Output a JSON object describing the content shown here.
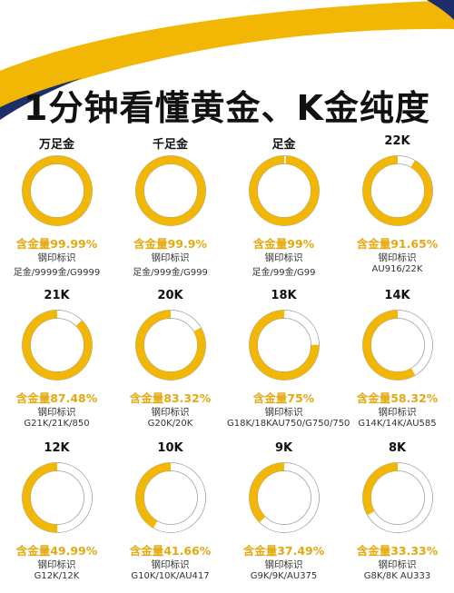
{
  "title": "1分钟看懂黄金、K金纯度",
  "colors": {
    "gold": "#f2b705",
    "ring_empty": "#ffffff",
    "ring_border": "#9a9a9a",
    "purity_text": "#e2a910",
    "navy": "#1d2f6b"
  },
  "items": [
    {
      "name": "万足金",
      "percent": 99.99,
      "purity": "含金量99.99%",
      "stamp_label": "钢印标识",
      "stamp": "足金/9999金/G9999"
    },
    {
      "name": "千足金",
      "percent": 99.9,
      "purity": "含金量99.9%",
      "stamp_label": "钢印标识",
      "stamp": "足金/999金/G999"
    },
    {
      "name": "足金",
      "percent": 99,
      "purity": "含金量99%",
      "stamp_label": "钢印标识",
      "stamp": "足金/99金/G99"
    },
    {
      "name": "22K",
      "percent": 91.65,
      "purity": "含金量91.65%",
      "stamp_label": "钢印标识",
      "stamp": "AU916/22K"
    },
    {
      "name": "21K",
      "percent": 87.48,
      "purity": "含金量87.48%",
      "stamp_label": "钢印标识",
      "stamp": "G21K/21K/850"
    },
    {
      "name": "20K",
      "percent": 83.32,
      "purity": "含金量83.32%",
      "stamp_label": "钢印标识",
      "stamp": "G20K/20K"
    },
    {
      "name": "18K",
      "percent": 75,
      "purity": "含金量75%",
      "stamp_label": "钢印标识",
      "stamp": "G18K/18KAU750/G750/750"
    },
    {
      "name": "14K",
      "percent": 58.32,
      "purity": "含金量58.32%",
      "stamp_label": "钢印标识",
      "stamp": "G14K/14K/AU585"
    },
    {
      "name": "12K",
      "percent": 49.99,
      "purity": "含金量49.99%",
      "stamp_label": "钢印标识",
      "stamp": "G12K/12K"
    },
    {
      "name": "10K",
      "percent": 41.66,
      "purity": "含金量41.66%",
      "stamp_label": "钢印标识",
      "stamp": "G10K/10K/AU417"
    },
    {
      "name": "9K",
      "percent": 37.49,
      "purity": "含金量37.49%",
      "stamp_label": "钢印标识",
      "stamp": "G9K/9K/AU375"
    },
    {
      "name": "8K",
      "percent": 33.33,
      "purity": "含金量33.33%",
      "stamp_label": "钢印标识",
      "stamp": "G8K/8K AU333"
    }
  ]
}
